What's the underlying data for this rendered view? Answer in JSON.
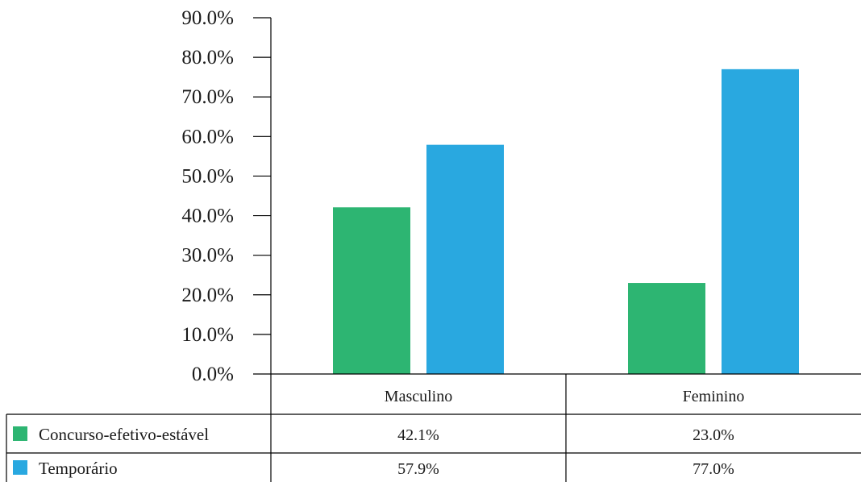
{
  "chart_data": {
    "type": "bar",
    "categories": [
      "Masculino",
      "Feminino"
    ],
    "series": [
      {
        "name": "Concurso-efetivo-estável",
        "values": [
          42.1,
          23.0
        ],
        "labels": [
          "42.1%",
          "23.0%"
        ],
        "color": "#2db572"
      },
      {
        "name": "Temporário",
        "values": [
          57.9,
          77.0
        ],
        "labels": [
          "57.9%",
          "77.0%"
        ],
        "color": "#29a8e0"
      }
    ],
    "yticks": [
      "0.0%",
      "10.0%",
      "20.0%",
      "30.0%",
      "40.0%",
      "50.0%",
      "60.0%",
      "70.0%",
      "80.0%",
      "90.0%"
    ],
    "ylim": [
      0,
      90
    ],
    "legend": "data-table",
    "grid": false
  }
}
